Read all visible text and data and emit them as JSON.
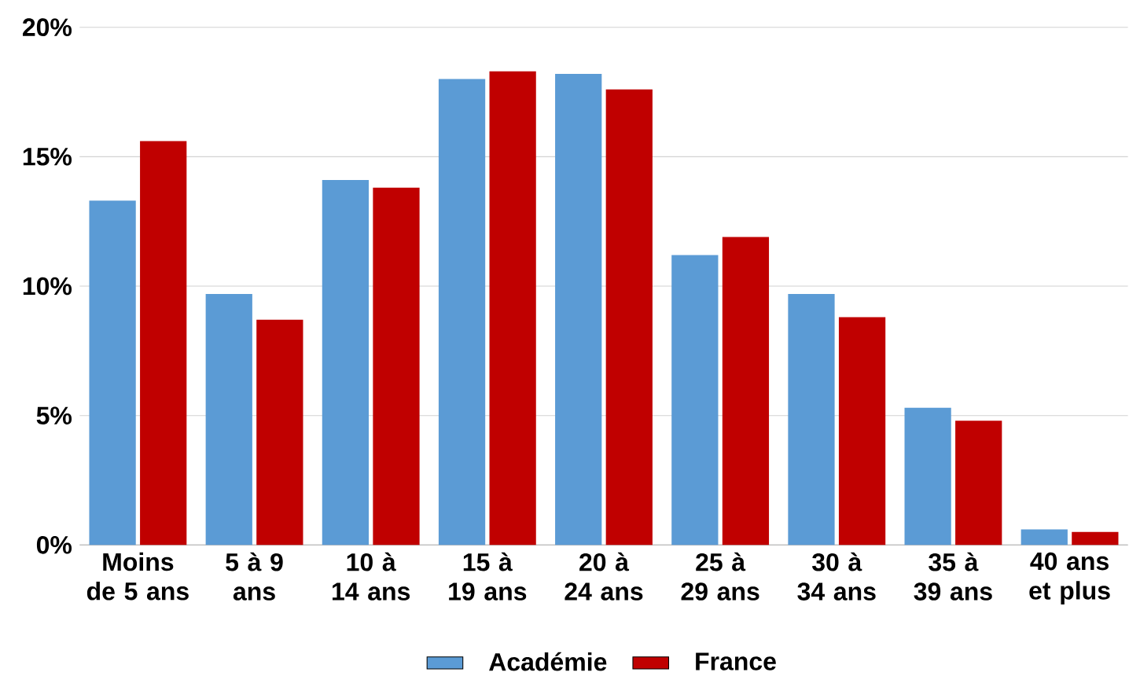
{
  "chart_data": {
    "type": "bar",
    "categories": [
      "Moins de 5 ans",
      "5 à 9 ans",
      "10 à 14 ans",
      "15 à 19 ans",
      "20 à 24 ans",
      "25 à 29 ans",
      "30 à 34 ans",
      "35 à 39 ans",
      "40 ans et plus"
    ],
    "series": [
      {
        "name": "Académie",
        "color": "#5b9bd5",
        "values": [
          13.3,
          9.7,
          14.1,
          18.0,
          18.2,
          11.2,
          9.7,
          5.3,
          0.6
        ]
      },
      {
        "name": "France",
        "color": "#c00000",
        "values": [
          15.6,
          8.7,
          13.8,
          18.3,
          17.6,
          11.9,
          8.8,
          4.8,
          0.5
        ]
      }
    ],
    "ylim": [
      0,
      20
    ],
    "yticks": [
      {
        "value": 0,
        "label": "0%"
      },
      {
        "value": 5,
        "label": "5%"
      },
      {
        "value": 10,
        "label": "10%"
      },
      {
        "value": 15,
        "label": "15%"
      },
      {
        "value": 20,
        "label": "20%"
      }
    ],
    "grid": "y",
    "legend": "bottom"
  }
}
